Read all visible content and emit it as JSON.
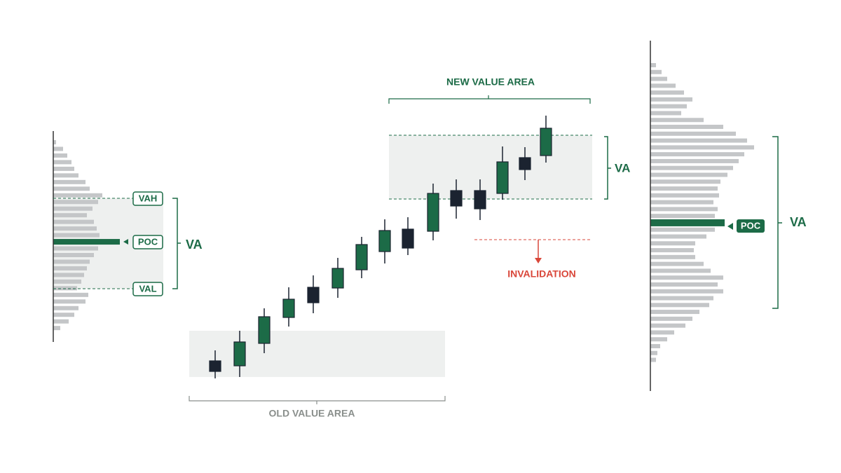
{
  "left_profile": {
    "vah": "VAH",
    "poc": "POC",
    "val": "VAL",
    "va": "VA"
  },
  "center": {
    "new_value_area": "NEW VALUE AREA",
    "va": "VA",
    "invalidation": "INVALIDATION",
    "old_value_area": "OLD VALUE AREA"
  },
  "right_profile": {
    "poc": "POC",
    "va": "VA"
  }
}
